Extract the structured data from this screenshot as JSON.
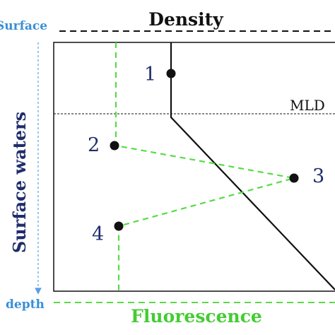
{
  "labels": {
    "top_axis": "Density",
    "bottom_axis": "Fluorescence",
    "surface": "Surface",
    "depth": "depth",
    "side_label": "Surface waters",
    "mld": "MLD"
  },
  "points": [
    {
      "label": "1"
    },
    {
      "label": "2"
    },
    {
      "label": "3"
    },
    {
      "label": "4"
    }
  ],
  "colors": {
    "density_line": "#111111",
    "fluorescence_line": "#55dd44",
    "fluorescence_text": "#44cc33",
    "side_label": "#1f2d6b",
    "point_labels": "#1f2d6b",
    "surface_depth_text": "#3a8fd6",
    "depth_arrow": "#5aa0e0",
    "frame": "#111111"
  }
}
